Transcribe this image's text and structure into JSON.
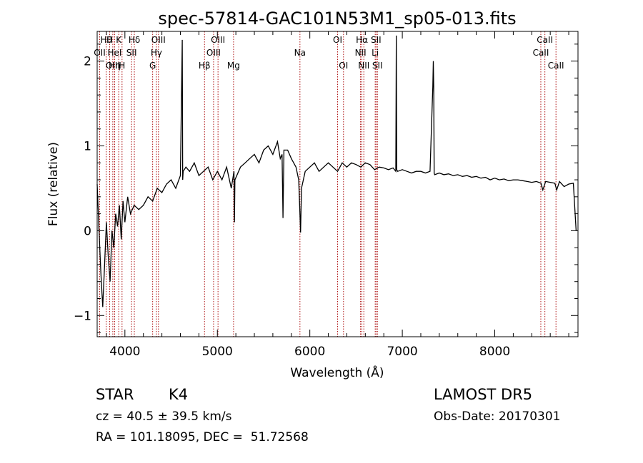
{
  "chart_data": {
    "type": "line",
    "title": "spec-57814-GAC101N53M1_sp05-013.fits",
    "xlabel": "Wavelength (Å)",
    "ylabel": "Flux (relative)",
    "xlim": [
      3700,
      8900
    ],
    "ylim": [
      -1.25,
      2.35
    ],
    "xticks": [
      4000,
      5000,
      6000,
      7000,
      8000
    ],
    "yticks": [
      -1,
      0,
      1,
      2
    ],
    "grid": false,
    "series": [
      {
        "x": [
          3700,
          3720,
          3740,
          3760,
          3780,
          3800,
          3820,
          3840,
          3860,
          3880,
          3900,
          3920,
          3940,
          3960,
          3980,
          4000,
          4030,
          4060,
          4100,
          4150,
          4200,
          4250,
          4300,
          4350,
          4400,
          4450,
          4500,
          4550,
          4600,
          4620,
          4625,
          4630,
          4660,
          4700,
          4750,
          4800,
          4850,
          4900,
          4950,
          5000,
          5050,
          5100,
          5150,
          5180,
          5185,
          5190,
          5250,
          5300,
          5350,
          5400,
          5450,
          5500,
          5550,
          5600,
          5650,
          5680,
          5700,
          5710,
          5720,
          5760,
          5800,
          5850,
          5880,
          5890,
          5900,
          5910,
          5950,
          6000,
          6050,
          6100,
          6150,
          6200,
          6250,
          6300,
          6350,
          6400,
          6450,
          6500,
          6550,
          6600,
          6650,
          6700,
          6750,
          6800,
          6850,
          6900,
          6930,
          6935,
          6940,
          6950,
          7000,
          7050,
          7100,
          7150,
          7200,
          7250,
          7300,
          7330,
          7335,
          7340,
          7345,
          7350,
          7400,
          7450,
          7500,
          7550,
          7600,
          7650,
          7700,
          7750,
          7800,
          7850,
          7900,
          7950,
          8000,
          8050,
          8100,
          8150,
          8200,
          8250,
          8300,
          8350,
          8400,
          8450,
          8500,
          8520,
          8550,
          8600,
          8650,
          8670,
          8700,
          8750,
          8800,
          8850,
          8880
        ],
        "y": [
          0.55,
          0.0,
          -0.5,
          -0.9,
          -0.4,
          0.1,
          -0.3,
          -0.6,
          0.0,
          -0.2,
          0.2,
          0.05,
          0.3,
          -0.1,
          0.35,
          0.1,
          0.4,
          0.2,
          0.3,
          0.25,
          0.3,
          0.4,
          0.35,
          0.5,
          0.45,
          0.55,
          0.6,
          0.5,
          0.65,
          2.25,
          0.6,
          0.7,
          0.75,
          0.7,
          0.8,
          0.65,
          0.7,
          0.75,
          0.6,
          0.7,
          0.6,
          0.75,
          0.5,
          0.7,
          0.1,
          0.6,
          0.75,
          0.8,
          0.85,
          0.9,
          0.8,
          0.95,
          1.0,
          0.9,
          1.05,
          0.85,
          0.9,
          0.15,
          0.95,
          0.95,
          0.85,
          0.75,
          0.6,
          0.3,
          -0.02,
          0.5,
          0.7,
          0.75,
          0.8,
          0.7,
          0.75,
          0.8,
          0.75,
          0.7,
          0.8,
          0.75,
          0.8,
          0.78,
          0.75,
          0.8,
          0.78,
          0.72,
          0.75,
          0.74,
          0.72,
          0.74,
          0.7,
          2.3,
          0.72,
          0.7,
          0.72,
          0.7,
          0.68,
          0.7,
          0.7,
          0.68,
          0.7,
          1.7,
          2.0,
          1.7,
          0.68,
          0.66,
          0.68,
          0.66,
          0.67,
          0.65,
          0.66,
          0.64,
          0.65,
          0.63,
          0.64,
          0.62,
          0.63,
          0.6,
          0.62,
          0.6,
          0.61,
          0.59,
          0.6,
          0.6,
          0.59,
          0.58,
          0.57,
          0.58,
          0.56,
          0.48,
          0.58,
          0.57,
          0.56,
          0.48,
          0.58,
          0.52,
          0.55,
          0.56,
          0.0
        ]
      }
    ],
    "lines": [
      {
        "x": 3798,
        "label": "Hθ",
        "row": 1
      },
      {
        "x": 3835,
        "label": "H",
        "row": 1
      },
      {
        "x": 3889,
        "label": "Hη",
        "row": 3
      },
      {
        "x": 3933,
        "label": "K",
        "row": 1
      },
      {
        "x": 3969,
        "label": "H",
        "row": 3
      },
      {
        "x": 3727,
        "label": "OII",
        "row": 2
      },
      {
        "x": 3869,
        "label": "OIII",
        "row": 3
      },
      {
        "x": 3889,
        "label": "HeI",
        "row": 2
      },
      {
        "x": 4072,
        "label": "SII",
        "row": 2
      },
      {
        "x": 4102,
        "label": "Hδ",
        "row": 1
      },
      {
        "x": 4300,
        "label": "G",
        "row": 3
      },
      {
        "x": 4341,
        "label": "Hγ",
        "row": 2
      },
      {
        "x": 4363,
        "label": "OIII",
        "row": 1
      },
      {
        "x": 4861,
        "label": "Hβ",
        "row": 3
      },
      {
        "x": 4959,
        "label": "OIII",
        "row": 2
      },
      {
        "x": 5007,
        "label": "OIII",
        "row": 1
      },
      {
        "x": 5175,
        "label": "Mg",
        "row": 3
      },
      {
        "x": 5893,
        "label": "Na",
        "row": 2
      },
      {
        "x": 6300,
        "label": "OI",
        "row": 1
      },
      {
        "x": 6364,
        "label": "OI",
        "row": 3
      },
      {
        "x": 6548,
        "label": "NII",
        "row": 2
      },
      {
        "x": 6563,
        "label": "Hα",
        "row": 1
      },
      {
        "x": 6584,
        "label": "NII",
        "row": 3
      },
      {
        "x": 6707,
        "label": "Li",
        "row": 2
      },
      {
        "x": 6716,
        "label": "SII",
        "row": 1
      },
      {
        "x": 6731,
        "label": "SII",
        "row": 3
      },
      {
        "x": 8498,
        "label": "CaII",
        "row": 2
      },
      {
        "x": 8542,
        "label": "CaII",
        "row": 1
      },
      {
        "x": 8662,
        "label": "CaII",
        "row": 3
      }
    ],
    "line_color": "#b01818"
  },
  "info": {
    "class": "STAR",
    "subclass": "K4",
    "survey": "LAMOST DR5",
    "cz": "cz = 40.5 ± 39.5 km/s",
    "obs_date": "Obs-Date: 20170301",
    "coords": "RA = 101.18095, DEC =  51.72568"
  }
}
